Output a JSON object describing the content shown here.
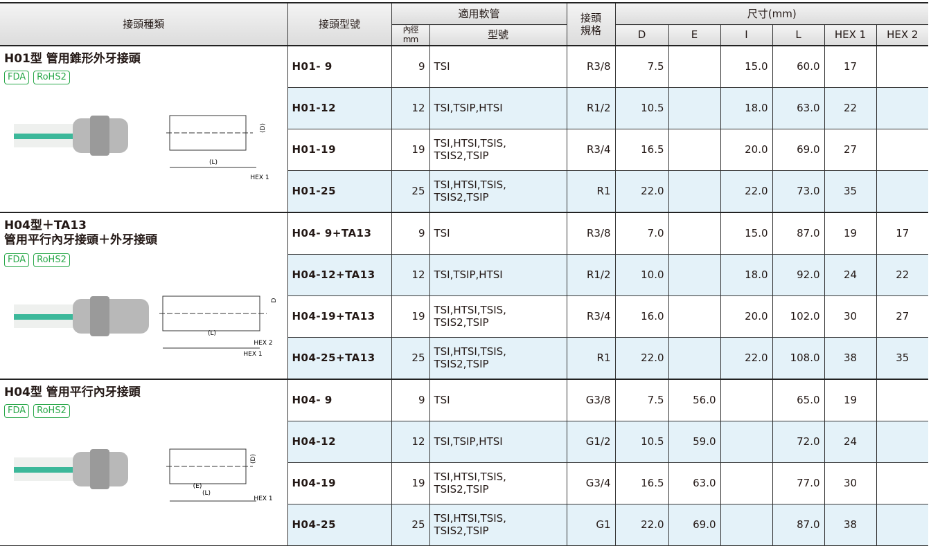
{
  "header": {
    "group": "接頭種類",
    "model": "接頭型號",
    "hose": "適用軟管",
    "inner": "內徑mm",
    "hose_type": "型號",
    "spec": "接頭\n規格",
    "size": "尺寸(mm)",
    "size_cols": [
      "D",
      "E",
      "I",
      "L",
      "HEX 1",
      "HEX 2"
    ]
  },
  "groups": [
    {
      "title": "H01型 管用錐形外牙接頭",
      "badges": [
        "FDA",
        "RoHS2"
      ],
      "diagram_labels": [
        "(D)",
        "(L)",
        "HEX 1"
      ],
      "rows": [
        [
          "H01- 9",
          "9",
          "TSI",
          "R3/8",
          "7.5",
          null,
          "15.0",
          "60.0",
          "17",
          null
        ],
        [
          "H01-12",
          "12",
          "TSI,TSIP,HTSI",
          "R1/2",
          "10.5",
          null,
          "18.0",
          "63.0",
          "22",
          null
        ],
        [
          "H01-19",
          "19",
          "TSI,HTSI,TSIS,\nTSIS2,TSIP",
          "R3/4",
          "16.5",
          null,
          "20.0",
          "69.0",
          "27",
          null
        ],
        [
          "H01-25",
          "25",
          "TSI,HTSI,TSIS,\nTSIS2,TSIP",
          "R1",
          "22.0",
          null,
          "22.0",
          "73.0",
          "35",
          null
        ]
      ]
    },
    {
      "title": "H04型＋TA13\n管用平行內牙接頭＋外牙接頭",
      "badges": [
        "FDA",
        "RoHS2"
      ],
      "diagram_labels": [
        "D",
        "(L)",
        "HEX 2",
        "HEX 1"
      ],
      "rows": [
        [
          "H04- 9+TA13",
          "9",
          "TSI",
          "R3/8",
          "7.0",
          null,
          "15.0",
          "87.0",
          "19",
          "17"
        ],
        [
          "H04-12+TA13",
          "12",
          "TSI,TSIP,HTSI",
          "R1/2",
          "10.0",
          null,
          "18.0",
          "92.0",
          "24",
          "22"
        ],
        [
          "H04-19+TA13",
          "19",
          "TSI,HTSI,TSIS,\nTSIS2,TSIP",
          "R3/4",
          "16.0",
          null,
          "20.0",
          "102.0",
          "30",
          "27"
        ],
        [
          "H04-25+TA13",
          "25",
          "TSI,HTSI,TSIS,\nTSIS2,TSIP",
          "R1",
          "22.0",
          null,
          "22.0",
          "108.0",
          "38",
          "35"
        ]
      ]
    },
    {
      "title": "H04型 管用平行內牙接頭",
      "badges": [
        "FDA",
        "RoHS2"
      ],
      "diagram_labels": [
        "(D)",
        "(E)",
        "(L)",
        "HEX 1"
      ],
      "rows": [
        [
          "H04- 9",
          "9",
          "TSI",
          "G3/8",
          "7.5",
          "56.0",
          null,
          "65.0",
          "19",
          null
        ],
        [
          "H04-12",
          "12",
          "TSI,TSIP,HTSI",
          "G1/2",
          "10.5",
          "59.0",
          null,
          "72.0",
          "24",
          null
        ],
        [
          "H04-19",
          "19",
          "TSI,HTSI,TSIS,\nTSIS2,TSIP",
          "G3/4",
          "16.5",
          "63.0",
          null,
          "77.0",
          "30",
          null
        ],
        [
          "H04-25",
          "25",
          "TSI,HTSI,TSIS,\nTSIS2,TSIP",
          "G1",
          "22.0",
          "69.0",
          null,
          "87.0",
          "38",
          null
        ]
      ]
    }
  ]
}
